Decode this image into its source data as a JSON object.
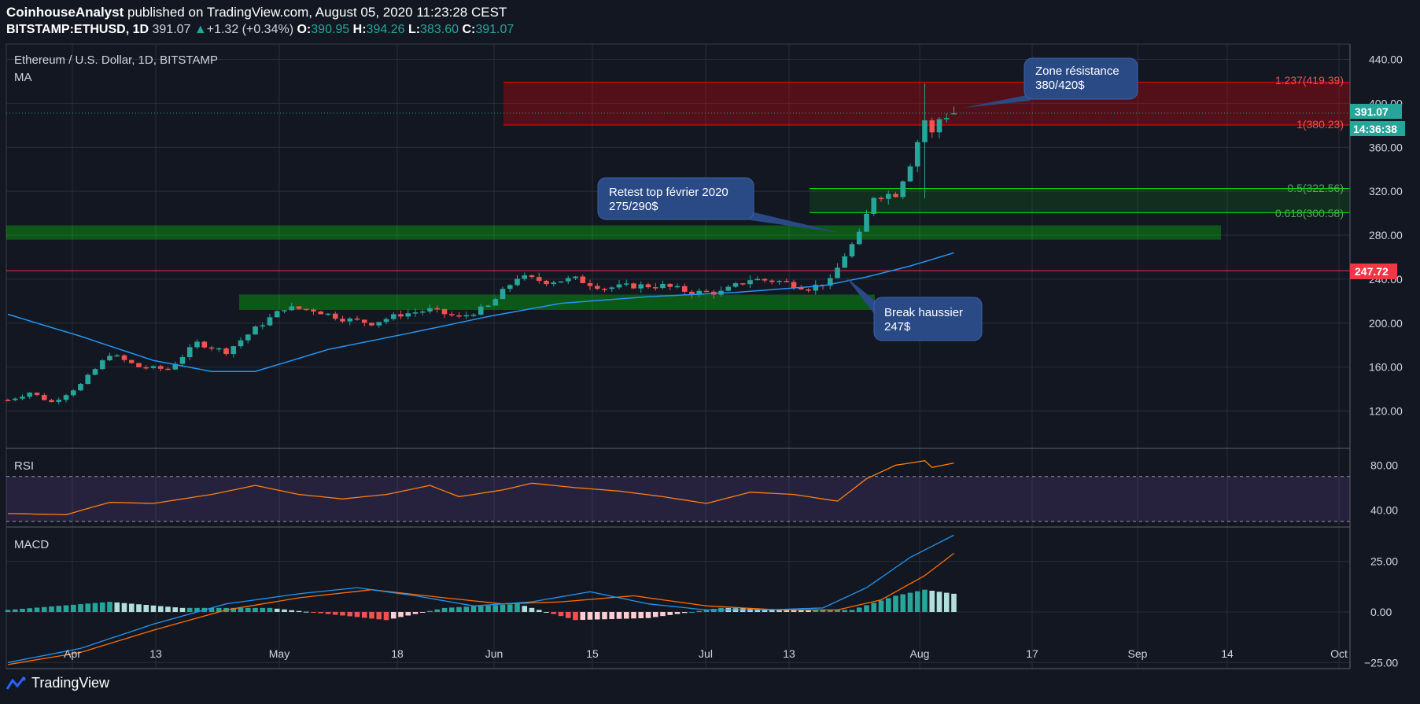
{
  "header": {
    "author": "CoinhouseAnalyst",
    "published_text": "published on TradingView.com, August 05, 2020 11:23:28 CEST",
    "symbol": "BITSTAMP:ETHUSD, 1D",
    "last": "391.07",
    "change": "+1.32 (+0.34%)",
    "o_label": "O:",
    "o": "390.95",
    "h_label": "H:",
    "h": "394.26",
    "l_label": "L:",
    "l": "383.60",
    "c_label": "C:",
    "c": "391.07"
  },
  "main_pane": {
    "title": "Ethereum / U.S. Dollar, 1D, BITSTAMP",
    "indicator": "MA",
    "price_badge": "391.07",
    "countdown_badge": "14:36:38",
    "level_badge": "247.72"
  },
  "annotations": {
    "resistance": {
      "line1": "Zone résistance",
      "line2": "380/420$"
    },
    "retest": {
      "line1": "Retest top février 2020",
      "line2": "275/290$"
    },
    "breakout": {
      "line1": "Break haussier",
      "line2": "247$"
    }
  },
  "fib_labels": {
    "f1237": "1.237(419.39)",
    "f1": "1(380.23)",
    "f05": "0.5(322.56)",
    "f0618": "0.618(300.58)"
  },
  "rsi_pane": {
    "title": "RSI"
  },
  "macd_pane": {
    "title": "MACD"
  },
  "footer": {
    "brand": "TradingView"
  },
  "colors": {
    "background": "#131722",
    "up": "#26a69a",
    "down": "#ef5350",
    "ma": "#2196f3",
    "rsi": "#ff7f0e",
    "macd_signal": "#ff6d00",
    "resistance_zone": "#ff0000",
    "support_zone": "#00ff00"
  },
  "chart_data": {
    "type": "candlestick",
    "price_axis": {
      "ticks": [
        120,
        160,
        200,
        240,
        280,
        320,
        360,
        400,
        440
      ],
      "ylim": [
        86,
        454
      ]
    },
    "time_axis": {
      "labels": [
        "Apr",
        "13",
        "May",
        "18",
        "Jun",
        "15",
        "Jul",
        "13",
        "Aug",
        "17",
        "Sep",
        "14",
        "Oct"
      ]
    },
    "anchors": [
      {
        "i": 0,
        "c": 130
      },
      {
        "i": 3,
        "c": 137
      },
      {
        "i": 6,
        "c": 128
      },
      {
        "i": 10,
        "c": 144
      },
      {
        "i": 14,
        "c": 172
      },
      {
        "i": 18,
        "c": 160
      },
      {
        "i": 22,
        "c": 158
      },
      {
        "i": 26,
        "c": 182
      },
      {
        "i": 30,
        "c": 174
      },
      {
        "i": 34,
        "c": 195
      },
      {
        "i": 38,
        "c": 214
      },
      {
        "i": 42,
        "c": 212
      },
      {
        "i": 46,
        "c": 204
      },
      {
        "i": 50,
        "c": 200
      },
      {
        "i": 54,
        "c": 208
      },
      {
        "i": 58,
        "c": 212
      },
      {
        "i": 62,
        "c": 205
      },
      {
        "i": 66,
        "c": 215
      },
      {
        "i": 70,
        "c": 242
      },
      {
        "i": 74,
        "c": 238
      },
      {
        "i": 78,
        "c": 240
      },
      {
        "i": 82,
        "c": 232
      },
      {
        "i": 86,
        "c": 234
      },
      {
        "i": 90,
        "c": 234
      },
      {
        "i": 94,
        "c": 228
      },
      {
        "i": 98,
        "c": 228
      },
      {
        "i": 102,
        "c": 240
      },
      {
        "i": 106,
        "c": 238
      },
      {
        "i": 110,
        "c": 232
      },
      {
        "i": 113,
        "c": 238
      },
      {
        "i": 115,
        "c": 262
      },
      {
        "i": 117,
        "c": 280
      },
      {
        "i": 119,
        "c": 316
      },
      {
        "i": 122,
        "c": 318
      },
      {
        "i": 124,
        "c": 346
      },
      {
        "i": 126,
        "c": 385
      },
      {
        "i": 127,
        "c": 372
      },
      {
        "i": 128,
        "c": 386
      },
      {
        "i": 129,
        "c": 389
      },
      {
        "i": 130,
        "c": 391.07
      }
    ],
    "moving_average": [
      {
        "i": 0,
        "v": 208
      },
      {
        "i": 10,
        "v": 188
      },
      {
        "i": 20,
        "v": 166
      },
      {
        "i": 28,
        "v": 156
      },
      {
        "i": 34,
        "v": 156
      },
      {
        "i": 44,
        "v": 176
      },
      {
        "i": 56,
        "v": 192
      },
      {
        "i": 66,
        "v": 206
      },
      {
        "i": 76,
        "v": 218
      },
      {
        "i": 88,
        "v": 224
      },
      {
        "i": 100,
        "v": 228
      },
      {
        "i": 112,
        "v": 234
      },
      {
        "i": 118,
        "v": 242
      },
      {
        "i": 124,
        "v": 252
      },
      {
        "i": 130,
        "v": 264
      }
    ],
    "zones": [
      {
        "name": "resistance",
        "from": 380.23,
        "to": 419.39
      },
      {
        "name": "fib",
        "from": 300.58,
        "to": 322.56
      },
      {
        "name": "support-retest",
        "from": 276,
        "to": 289
      },
      {
        "name": "support-lower",
        "from": 212,
        "to": 226
      }
    ],
    "levels": [
      247.72,
      391.07
    ],
    "rsi": {
      "ticks": [
        40,
        80
      ],
      "upper": 70,
      "lower": 30,
      "ylim": [
        25,
        95
      ],
      "points": [
        {
          "i": 0,
          "v": 37
        },
        {
          "i": 8,
          "v": 36
        },
        {
          "i": 14,
          "v": 47
        },
        {
          "i": 20,
          "v": 46
        },
        {
          "i": 28,
          "v": 54
        },
        {
          "i": 34,
          "v": 62
        },
        {
          "i": 40,
          "v": 54
        },
        {
          "i": 46,
          "v": 50
        },
        {
          "i": 52,
          "v": 54
        },
        {
          "i": 58,
          "v": 62
        },
        {
          "i": 62,
          "v": 52
        },
        {
          "i": 68,
          "v": 58
        },
        {
          "i": 72,
          "v": 64
        },
        {
          "i": 78,
          "v": 60
        },
        {
          "i": 84,
          "v": 57
        },
        {
          "i": 90,
          "v": 52
        },
        {
          "i": 96,
          "v": 46
        },
        {
          "i": 102,
          "v": 56
        },
        {
          "i": 108,
          "v": 54
        },
        {
          "i": 114,
          "v": 48
        },
        {
          "i": 118,
          "v": 68
        },
        {
          "i": 122,
          "v": 80
        },
        {
          "i": 126,
          "v": 84
        },
        {
          "i": 127,
          "v": 78
        },
        {
          "i": 130,
          "v": 82
        }
      ]
    },
    "macd": {
      "ticks": [
        -25,
        0,
        25
      ],
      "ylim": [
        -28,
        42
      ],
      "macd": [
        {
          "i": 0,
          "v": -25
        },
        {
          "i": 10,
          "v": -18
        },
        {
          "i": 20,
          "v": -6
        },
        {
          "i": 30,
          "v": 4
        },
        {
          "i": 40,
          "v": 9
        },
        {
          "i": 48,
          "v": 12
        },
        {
          "i": 56,
          "v": 8
        },
        {
          "i": 64,
          "v": 3
        },
        {
          "i": 72,
          "v": 5
        },
        {
          "i": 80,
          "v": 10
        },
        {
          "i": 88,
          "v": 4
        },
        {
          "i": 96,
          "v": 1
        },
        {
          "i": 104,
          "v": 1
        },
        {
          "i": 112,
          "v": 2
        },
        {
          "i": 118,
          "v": 12
        },
        {
          "i": 124,
          "v": 27
        },
        {
          "i": 130,
          "v": 38
        }
      ],
      "signal": [
        {
          "i": 0,
          "v": -26
        },
        {
          "i": 10,
          "v": -20
        },
        {
          "i": 20,
          "v": -9
        },
        {
          "i": 30,
          "v": 1
        },
        {
          "i": 40,
          "v": 7
        },
        {
          "i": 50,
          "v": 11
        },
        {
          "i": 60,
          "v": 7
        },
        {
          "i": 68,
          "v": 4
        },
        {
          "i": 76,
          "v": 5
        },
        {
          "i": 86,
          "v": 8
        },
        {
          "i": 96,
          "v": 3
        },
        {
          "i": 106,
          "v": 1
        },
        {
          "i": 114,
          "v": 1
        },
        {
          "i": 120,
          "v": 6
        },
        {
          "i": 126,
          "v": 18
        },
        {
          "i": 130,
          "v": 29
        }
      ],
      "histogram": [
        {
          "i": 0,
          "v": 1
        },
        {
          "i": 14,
          "v": 5
        },
        {
          "i": 24,
          "v": 2
        },
        {
          "i": 36,
          "v": 2
        },
        {
          "i": 44,
          "v": -1
        },
        {
          "i": 52,
          "v": -4
        },
        {
          "i": 60,
          "v": 2
        },
        {
          "i": 70,
          "v": 4
        },
        {
          "i": 78,
          "v": -4
        },
        {
          "i": 88,
          "v": -3
        },
        {
          "i": 98,
          "v": 2
        },
        {
          "i": 110,
          "v": 1
        },
        {
          "i": 116,
          "v": 1
        },
        {
          "i": 122,
          "v": 8
        },
        {
          "i": 126,
          "v": 11
        },
        {
          "i": 130,
          "v": 9
        }
      ]
    }
  }
}
